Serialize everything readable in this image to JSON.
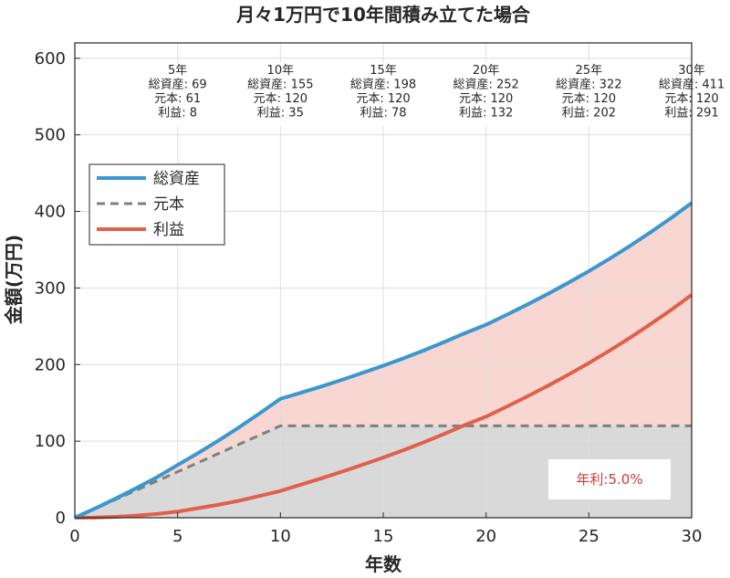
{
  "chart_data": {
    "type": "line",
    "title": "月々1万円で10年間積み立てた場合",
    "xlabel": "年数",
    "ylabel": "金額(万円)",
    "xlim": [
      0,
      30
    ],
    "ylim": [
      0,
      620
    ],
    "xticks": [
      0,
      5,
      10,
      15,
      20,
      25,
      30
    ],
    "yticks": [
      0,
      100,
      200,
      300,
      400,
      500,
      600
    ],
    "grid": true,
    "legend": {
      "placement": "upper-left"
    },
    "series": [
      {
        "name": "総資産",
        "color": "#3a97cf",
        "style": "solid",
        "x": [
          0,
          1,
          2,
          3,
          4,
          5,
          6,
          7,
          8,
          9,
          10,
          11,
          12,
          13,
          14,
          15,
          16,
          17,
          18,
          19,
          20,
          21,
          22,
          23,
          24,
          25,
          26,
          27,
          28,
          29,
          30
        ],
        "values": [
          0,
          12.3,
          25.2,
          38.8,
          53.0,
          68.9,
          84.5,
          101.0,
          118.3,
          136.5,
          155.3,
          163.3,
          171.5,
          180.2,
          189.3,
          198.5,
          208.4,
          218.8,
          229.8,
          241.3,
          252.0,
          265.0,
          278.3,
          292.2,
          306.8,
          322.0,
          338.1,
          355.0,
          372.8,
          391.4,
          411.0
        ]
      },
      {
        "name": "元本",
        "color": "#7f7f7f",
        "style": "dashed",
        "x": [
          0,
          10,
          30
        ],
        "values": [
          0,
          120,
          120
        ]
      },
      {
        "name": "利益",
        "color": "#e0604a",
        "style": "solid",
        "x": [
          0,
          1,
          2,
          3,
          4,
          5,
          6,
          7,
          8,
          9,
          10,
          11,
          12,
          13,
          14,
          15,
          16,
          17,
          18,
          19,
          20,
          21,
          22,
          23,
          24,
          25,
          26,
          27,
          28,
          29,
          30
        ],
        "values": [
          0,
          0.3,
          1.2,
          2.8,
          5.0,
          8.0,
          12.5,
          17.0,
          22.3,
          28.5,
          35.0,
          43.3,
          51.5,
          60.2,
          69.3,
          78.5,
          88.4,
          98.8,
          109.8,
          121.3,
          132.0,
          145.0,
          158.3,
          172.2,
          186.8,
          202.0,
          218.1,
          235.0,
          252.8,
          271.4,
          291.0
        ]
      }
    ],
    "fills": [
      {
        "between": [
          "元本",
          "axis"
        ],
        "color": "#d9d9d9"
      },
      {
        "between": [
          "総資産",
          "元本"
        ],
        "color": "#f8d6d2"
      }
    ],
    "annotations": [
      {
        "x": 5,
        "year": "5年",
        "total": "総資産: 69",
        "principal": "元本: 61",
        "profit": "利益: 8"
      },
      {
        "x": 10,
        "year": "10年",
        "total": "総資産: 155",
        "principal": "元本: 120",
        "profit": "利益: 35"
      },
      {
        "x": 15,
        "year": "15年",
        "total": "総資産: 198",
        "principal": "元本: 120",
        "profit": "利益: 78"
      },
      {
        "x": 20,
        "year": "20年",
        "total": "総資産: 252",
        "principal": "元本: 120",
        "profit": "利益: 132"
      },
      {
        "x": 25,
        "year": "25年",
        "total": "総資産: 322",
        "principal": "元本: 120",
        "profit": "利益: 202"
      },
      {
        "x": 30,
        "year": "30年",
        "total": "総資産: 411",
        "principal": "元本: 120",
        "profit": "利益: 291"
      }
    ],
    "rate_label": "年利:5.0%"
  }
}
